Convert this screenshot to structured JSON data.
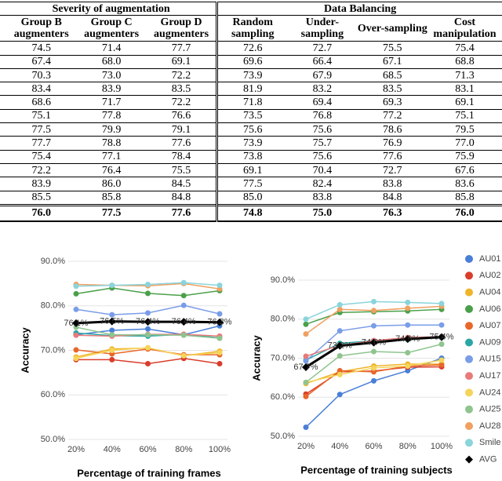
{
  "table": {
    "groups": [
      "Severity of augmentation",
      "Data Balancing"
    ],
    "columns": [
      "Group B augmenters",
      "Group C augmenters",
      "Group D augmenters",
      "Random sampling",
      "Under-sampling",
      "Over-sampling",
      "Cost manipulation"
    ],
    "rows": [
      [
        "74.5",
        "71.4",
        "77.7",
        "72.6",
        "72.7",
        "75.5",
        "75.4"
      ],
      [
        "67.4",
        "68.0",
        "69.1",
        "69.6",
        "66.4",
        "67.1",
        "68.8"
      ],
      [
        "70.3",
        "73.0",
        "72.2",
        "73.9",
        "67.9",
        "68.5",
        "71.3"
      ],
      [
        "83.4",
        "83.9",
        "83.5",
        "81.9",
        "83.2",
        "83.5",
        "83.1"
      ],
      [
        "68.6",
        "71.7",
        "72.2",
        "71.8",
        "69.4",
        "69.3",
        "69.1"
      ],
      [
        "75.1",
        "77.8",
        "76.6",
        "73.5",
        "76.8",
        "77.2",
        "75.1"
      ],
      [
        "77.5",
        "79.9",
        "79.1",
        "75.6",
        "75.6",
        "78.6",
        "79.5"
      ],
      [
        "77.7",
        "78.8",
        "77.6",
        "73.9",
        "75.7",
        "76.9",
        "77.0"
      ],
      [
        "75.4",
        "77.1",
        "78.4",
        "73.8",
        "75.6",
        "77.6",
        "75.9"
      ],
      [
        "72.2",
        "76.4",
        "75.5",
        "69.1",
        "70.4",
        "72.7",
        "67.6"
      ],
      [
        "83.9",
        "86.0",
        "84.5",
        "77.5",
        "82.4",
        "83.8",
        "83.6"
      ],
      [
        "85.5",
        "85.8",
        "84.8",
        "85.0",
        "83.8",
        "84.8",
        "85.8"
      ]
    ],
    "average": [
      "76.0",
      "77.5",
      "77.6",
      "74.8",
      "75.0",
      "76.3",
      "76.0"
    ]
  },
  "chart_data": [
    {
      "type": "line",
      "x_label": "Percentage of training frames",
      "y_label": "Accuracy",
      "categories": [
        "20%",
        "40%",
        "60%",
        "80%",
        "100%"
      ],
      "ylim": [
        50,
        90
      ],
      "yticks": [
        {
          "value": 50,
          "label": "50.0%"
        },
        {
          "value": 60,
          "label": "60.0%"
        },
        {
          "value": 70,
          "label": "70.0%"
        },
        {
          "value": 80,
          "label": "80.0%"
        },
        {
          "value": 90,
          "label": "90.0%"
        }
      ],
      "grid": true,
      "legend": false,
      "series": [
        {
          "color": "#4a7fd8",
          "values": [
            73.5,
            74.5,
            74.8,
            73.5,
            75.5
          ]
        },
        {
          "color": "#d93d2b",
          "values": [
            67.9,
            67.9,
            67.0,
            68.2,
            67.0
          ]
        },
        {
          "color": "#f0b429",
          "values": [
            68.5,
            70.3,
            70.5,
            68.8,
            69.8
          ]
        },
        {
          "color": "#4aa04a",
          "values": [
            82.7,
            84.0,
            82.8,
            82.3,
            83.4
          ]
        },
        {
          "color": "#e8672a",
          "values": [
            70.1,
            69.2,
            70.3,
            69.0,
            69.0
          ]
        },
        {
          "color": "#2aa6a6",
          "values": [
            73.9,
            73.3,
            73.2,
            73.6,
            72.8
          ]
        },
        {
          "color": "#7a9de8",
          "values": [
            79.2,
            78.0,
            78.4,
            80.1,
            78.2
          ]
        },
        {
          "color": "#e87a7a",
          "values": [
            73.4,
            73.2,
            73.6,
            73.6,
            73.2
          ]
        },
        {
          "color": "#f5d45a",
          "values": [
            68.2,
            70.0,
            70.6,
            68.8,
            69.5
          ]
        },
        {
          "color": "#8fc48f",
          "values": [
            75.2,
            73.5,
            73.5,
            73.4,
            72.7
          ]
        },
        {
          "color": "#f0a060",
          "values": [
            84.8,
            84.6,
            84.5,
            85.0,
            83.8
          ]
        },
        {
          "color": "#8ad4dc",
          "values": [
            84.4,
            84.6,
            84.8,
            85.2,
            84.6
          ]
        },
        {
          "color": "#000000",
          "values": [
            76.1,
            76.5,
            76.4,
            76.4,
            76.3
          ],
          "value_labels": [
            "76.1%",
            "76.5%",
            "76.4%",
            "76.4%",
            "76.3%"
          ]
        }
      ]
    },
    {
      "type": "line",
      "x_label": "Percentage of training subjects",
      "y_label": "Accuracy",
      "categories": [
        "20%",
        "40%",
        "60%",
        "80%",
        "100%"
      ],
      "ylim": [
        50,
        90
      ],
      "yticks": [
        {
          "value": 50,
          "label": "50.0%"
        },
        {
          "value": 60,
          "label": "60.0%"
        },
        {
          "value": 70,
          "label": "70.0%"
        },
        {
          "value": 80,
          "label": "80.0%"
        },
        {
          "value": 90,
          "label": "90.0%"
        }
      ],
      "grid": true,
      "legend": true,
      "series": [
        {
          "name": "AU01",
          "color": "#4a7fd8",
          "values": [
            52.3,
            60.7,
            64.2,
            66.8,
            70.0
          ]
        },
        {
          "name": "AU02",
          "color": "#d93d2b",
          "values": [
            60.8,
            66.5,
            66.7,
            67.7,
            67.8
          ]
        },
        {
          "name": "AU04",
          "color": "#f0b429",
          "values": [
            63.5,
            66.5,
            68.0,
            68.5,
            68.5
          ]
        },
        {
          "name": "AU06",
          "color": "#4aa04a",
          "values": [
            78.7,
            81.7,
            81.9,
            82.1,
            82.5
          ]
        },
        {
          "name": "AU07",
          "color": "#e8672a",
          "values": [
            60.2,
            66.8,
            66.5,
            68.0,
            68.3
          ]
        },
        {
          "name": "AU09",
          "color": "#2aa6a6",
          "values": [
            69.5,
            73.8,
            74.5,
            74.8,
            75.3
          ]
        },
        {
          "name": "AU15",
          "color": "#7a9de8",
          "values": [
            69.3,
            77.0,
            78.3,
            78.5,
            78.5
          ]
        },
        {
          "name": "AU17",
          "color": "#e87a7a",
          "values": [
            70.5,
            73.3,
            74.5,
            75.3,
            75.5
          ]
        },
        {
          "name": "AU24",
          "color": "#f5d45a",
          "values": [
            63.8,
            65.8,
            67.5,
            68.0,
            69.5
          ]
        },
        {
          "name": "AU25",
          "color": "#8fc48f",
          "values": [
            63.8,
            70.6,
            71.7,
            71.4,
            73.6
          ]
        },
        {
          "name": "AU28",
          "color": "#f0a060",
          "values": [
            76.2,
            82.5,
            82.2,
            82.8,
            83.3
          ]
        },
        {
          "name": "Smile",
          "color": "#8ad4dc",
          "values": [
            80.0,
            83.7,
            84.5,
            84.3,
            84.0
          ]
        },
        {
          "name": "AVG",
          "color": "#000000",
          "values": [
            67.7,
            73.2,
            74.0,
            74.9,
            75.4
          ],
          "value_labels": [
            "67.7%",
            "73.2%",
            "74.0%",
            "74.9%",
            "75.4%"
          ]
        }
      ]
    }
  ]
}
